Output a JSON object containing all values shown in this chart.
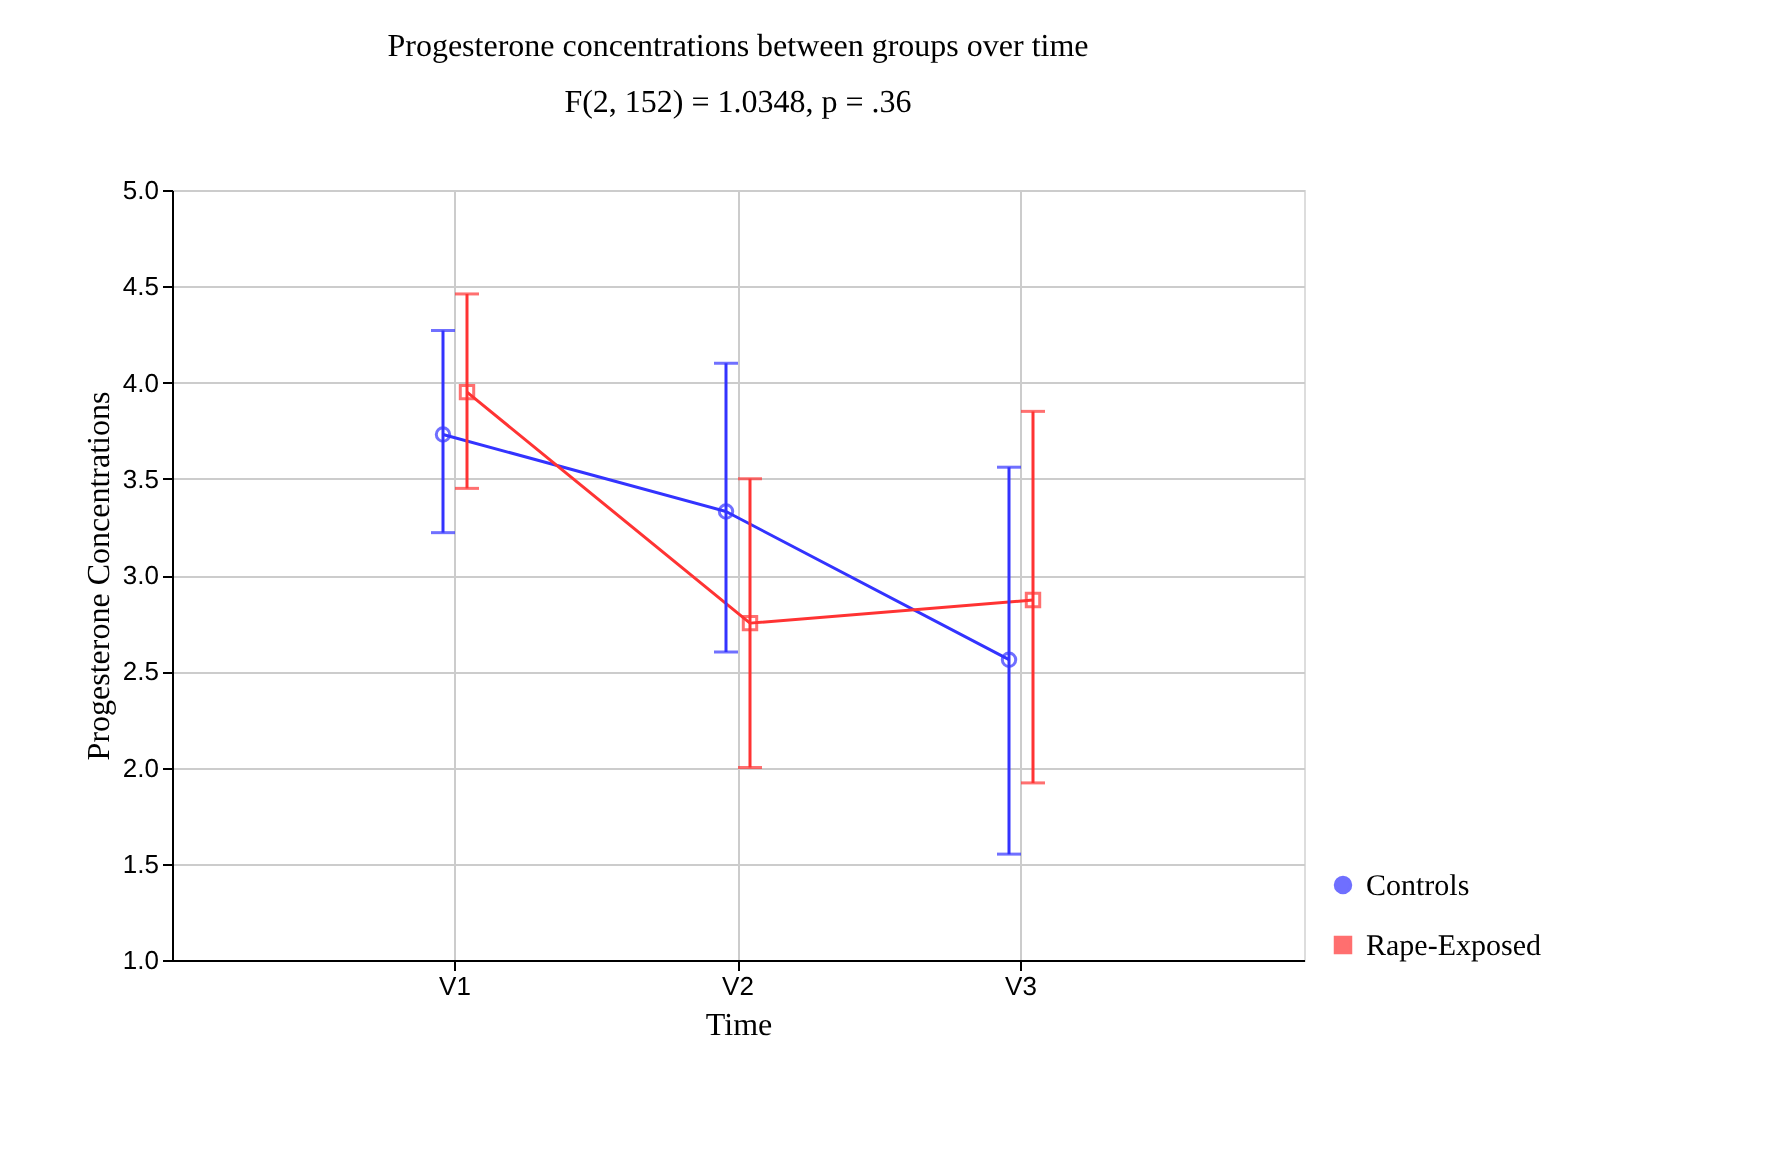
{
  "chart_data": {
    "type": "line",
    "title": "Progesterone concentrations between groups over time",
    "subtitle": "F(2, 152) = 1.0348, p = .36",
    "xlabel": "Time",
    "ylabel": "Progesterone Concentrations",
    "categories": [
      "V1",
      "V2",
      "V3"
    ],
    "series": [
      {
        "name": "Controls",
        "color": "#3333ff",
        "marker": "circle",
        "values": [
          3.73,
          3.33,
          2.56
        ],
        "errors": [
          [
            3.22,
            4.27
          ],
          [
            2.6,
            4.1
          ],
          [
            1.55,
            3.56
          ]
        ]
      },
      {
        "name": "Rape-Exposed",
        "color": "#ff3333",
        "marker": "square",
        "values": [
          3.95,
          2.75,
          2.87
        ],
        "errors": [
          [
            3.45,
            4.46
          ],
          [
            2.0,
            3.5
          ],
          [
            1.92,
            3.85
          ]
        ]
      }
    ],
    "ylim": [
      1.0,
      5.0
    ],
    "yticks": [
      {
        "value": 1.0,
        "label": "1.0"
      },
      {
        "value": 1.5,
        "label": "1.5"
      },
      {
        "value": 2.0,
        "label": "2.0"
      },
      {
        "value": 2.5,
        "label": "2.5"
      },
      {
        "value": 3.0,
        "label": "3.0"
      },
      {
        "value": 3.5,
        "label": "3.5"
      },
      {
        "value": 4.0,
        "label": "4.0"
      },
      {
        "value": 4.5,
        "label": "4.5"
      },
      {
        "value": 5.0,
        "label": "5.0"
      }
    ],
    "grid": true,
    "legend": "bottom right",
    "line_style": "solid"
  }
}
